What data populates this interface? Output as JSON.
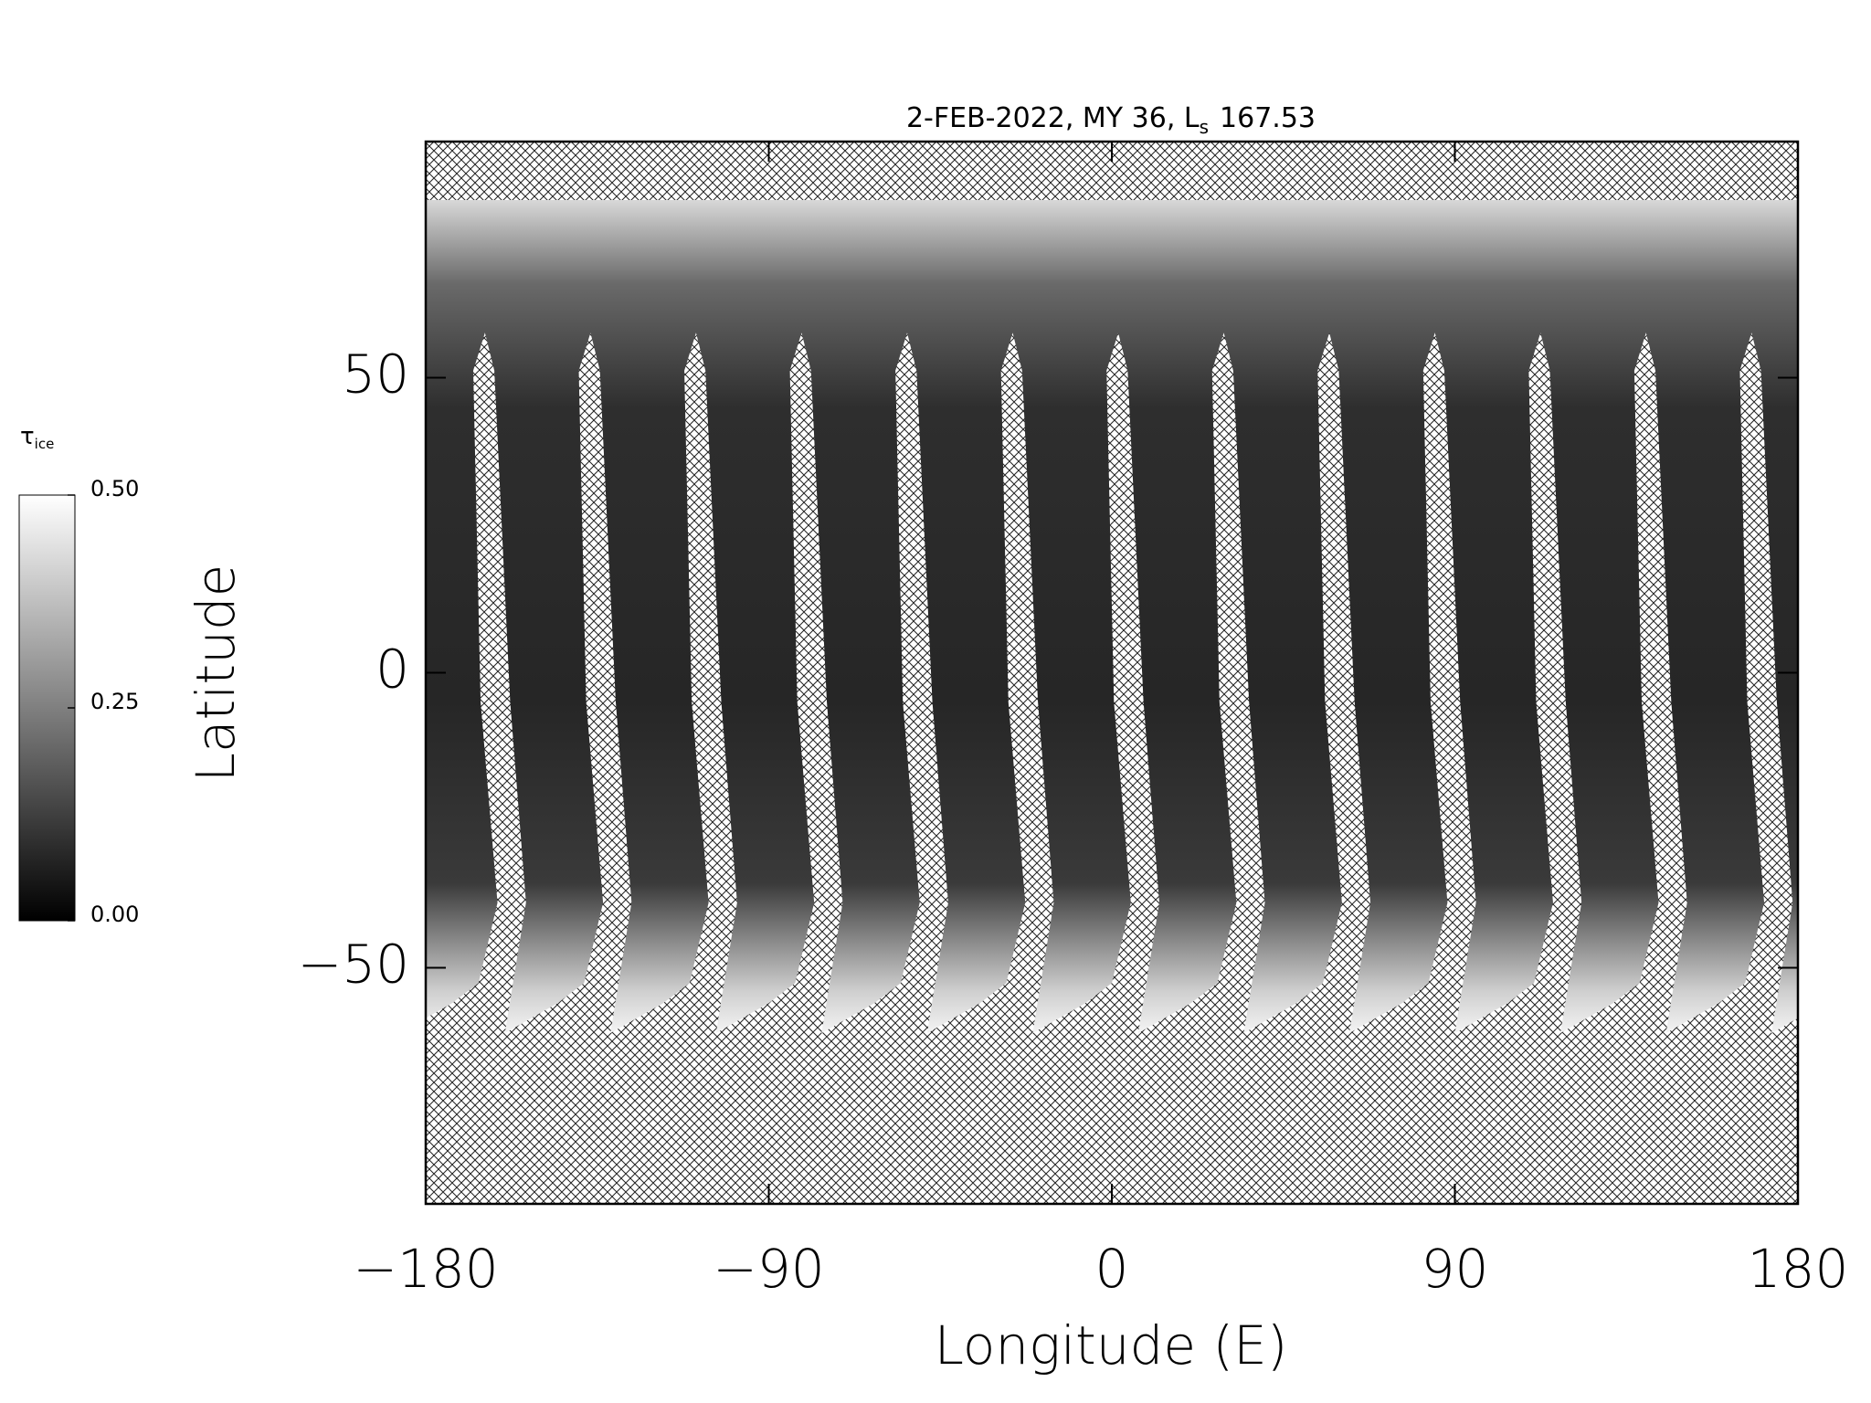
{
  "chart_data": {
    "type": "map",
    "title": "2-FEB-2022, MY 36,  L",
    "title_subscript": "s",
    "title_suffix": "167.53",
    "x_label": "Longitude (E)",
    "y_label": "Latitude",
    "xlim": [
      -180,
      180
    ],
    "ylim": [
      -90,
      90
    ],
    "xticks": [
      {
        "value": -180,
        "label": "−180"
      },
      {
        "value": -90,
        "label": "−90"
      },
      0,
      90,
      180
    ],
    "yticks": [
      {
        "value": -50,
        "label": "−50"
      },
      0,
      50
    ],
    "colorbar": {
      "label": "τ",
      "label_subscript": "ice",
      "lim": [
        0,
        0.5
      ],
      "ticks": [
        {
          "value": 0,
          "label": "0.00"
        },
        {
          "value": 0.25,
          "label": "0.25"
        },
        {
          "value": 0.5,
          "label": "0.50"
        }
      ]
    }
  }
}
